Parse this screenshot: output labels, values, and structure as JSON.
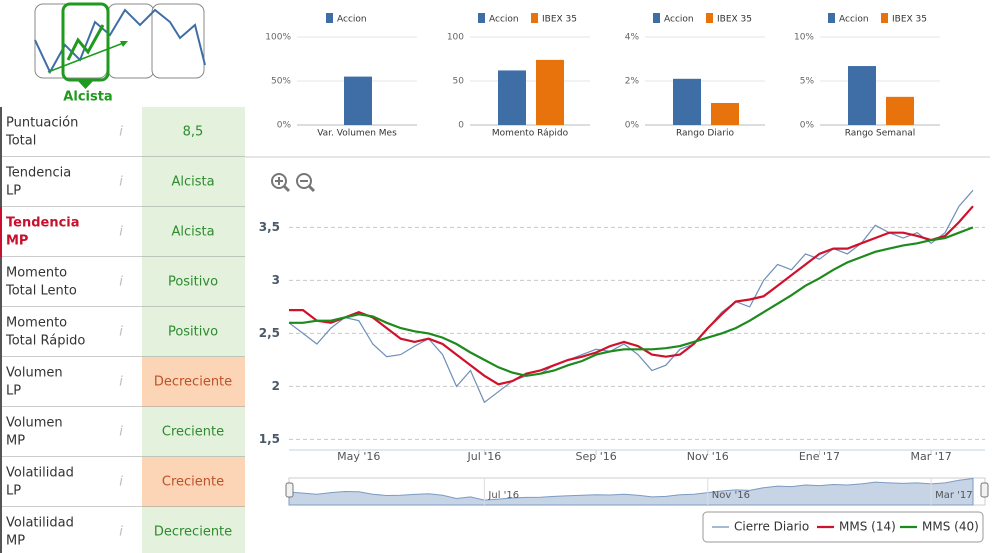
{
  "trend_badge": {
    "label": "Alcista"
  },
  "indicators": [
    {
      "label": [
        "Puntuación",
        "Total"
      ],
      "value": "8,5",
      "color": "#e3f1dd",
      "text_color": "#2e8b2e"
    },
    {
      "label": [
        "Tendencia",
        "LP"
      ],
      "value": "Alcista",
      "color": "#e3f1dd",
      "text_color": "#2e8b2e"
    },
    {
      "label": [
        "Tendencia",
        "MP"
      ],
      "value": "Alcista",
      "color": "#e3f1dd",
      "text_color": "#2e8b2e",
      "label_color": "#c8102e"
    },
    {
      "label": [
        "Momento",
        "Total Lento"
      ],
      "value": "Positivo",
      "color": "#e3f1dd",
      "text_color": "#2e8b2e"
    },
    {
      "label": [
        "Momento",
        "Total Rápido"
      ],
      "value": "Positivo",
      "color": "#e3f1dd",
      "text_color": "#2e8b2e"
    },
    {
      "label": [
        "Volumen",
        "LP"
      ],
      "value": "Decreciente",
      "color": "#fbd5b5",
      "text_color": "#c0502b"
    },
    {
      "label": [
        "Volumen",
        "MP"
      ],
      "value": "Creciente",
      "color": "#e3f1dd",
      "text_color": "#2e8b2e"
    },
    {
      "label": [
        "Volatilidad",
        "LP"
      ],
      "value": "Creciente",
      "color": "#fbd5b5",
      "text_color": "#c0502b"
    },
    {
      "label": [
        "Volatilidad",
        "MP"
      ],
      "value": "Decreciente",
      "color": "#e3f1dd",
      "text_color": "#2e8b2e"
    }
  ],
  "chart_data": [
    {
      "type": "bar",
      "categories": [
        "Var. Volumen Mes"
      ],
      "series": [
        {
          "name": "Accion",
          "color": "#3f6ea6",
          "values": [
            55
          ]
        }
      ],
      "ylim": [
        0,
        100
      ],
      "yticks": [
        {
          "value": 0,
          "label": "0%"
        },
        {
          "value": 50,
          "label": "50%"
        },
        {
          "value": 100,
          "label": "100%"
        }
      ],
      "grid": true
    },
    {
      "type": "bar",
      "categories": [
        "Momento Rápido"
      ],
      "series": [
        {
          "name": "Accion",
          "color": "#3f6ea6",
          "values": [
            62
          ]
        },
        {
          "name": "IBEX 35",
          "color": "#e8730c",
          "values": [
            74
          ]
        }
      ],
      "ylim": [
        0,
        100
      ],
      "yticks": [
        0,
        50,
        100
      ],
      "grid": true
    },
    {
      "type": "bar",
      "categories": [
        "Rango Diario"
      ],
      "series": [
        {
          "name": "Accion",
          "color": "#3f6ea6",
          "values": [
            2.1
          ]
        },
        {
          "name": "IBEX 35",
          "color": "#e8730c",
          "values": [
            1.0
          ]
        }
      ],
      "ylim": [
        0,
        4
      ],
      "yticks": [
        {
          "value": 0,
          "label": "0%"
        },
        {
          "value": 2,
          "label": "2%"
        },
        {
          "value": 4,
          "label": "4%"
        }
      ],
      "grid": true
    },
    {
      "type": "bar",
      "categories": [
        "Rango Semanal"
      ],
      "series": [
        {
          "name": "Accion",
          "color": "#3f6ea6",
          "values": [
            6.7
          ]
        },
        {
          "name": "IBEX 35",
          "color": "#e8730c",
          "values": [
            3.2
          ]
        }
      ],
      "ylim": [
        0,
        10
      ],
      "yticks": [
        {
          "value": 0,
          "label": "0%"
        },
        {
          "value": 5,
          "label": "5%"
        },
        {
          "value": 10,
          "label": "10%"
        }
      ],
      "grid": true
    },
    {
      "type": "line",
      "categories": [
        null,
        null,
        null,
        null,
        null,
        "May '16",
        null,
        null,
        null,
        null,
        null,
        null,
        null,
        null,
        "Jul '16",
        null,
        null,
        null,
        null,
        null,
        null,
        null,
        "Sep '16",
        null,
        null,
        null,
        null,
        null,
        null,
        null,
        "Nov '16",
        null,
        null,
        null,
        null,
        null,
        null,
        null,
        "Ene '17",
        null,
        null,
        null,
        null,
        null,
        null,
        null,
        "Mar '17",
        null,
        null,
        null
      ],
      "series": [
        {
          "name": "Cierre Diario",
          "color": "#6d8fb8",
          "values": [
            2.6,
            2.5,
            2.4,
            2.55,
            2.65,
            2.62,
            2.4,
            2.28,
            2.3,
            2.38,
            2.45,
            2.3,
            2.0,
            2.15,
            1.85,
            1.95,
            2.05,
            2.1,
            2.12,
            2.2,
            2.25,
            2.3,
            2.35,
            2.33,
            2.4,
            2.3,
            2.15,
            2.2,
            2.35,
            2.4,
            2.55,
            2.7,
            2.8,
            2.75,
            3.0,
            3.15,
            3.1,
            3.25,
            3.2,
            3.3,
            3.25,
            3.35,
            3.52,
            3.45,
            3.4,
            3.45,
            3.35,
            3.45,
            3.7,
            3.85
          ]
        },
        {
          "name": "MMS (14)",
          "color": "#d0112b",
          "values": [
            2.72,
            2.72,
            2.62,
            2.6,
            2.65,
            2.7,
            2.65,
            2.55,
            2.45,
            2.42,
            2.45,
            2.4,
            2.3,
            2.2,
            2.1,
            2.02,
            2.05,
            2.12,
            2.15,
            2.2,
            2.25,
            2.28,
            2.32,
            2.38,
            2.42,
            2.38,
            2.3,
            2.28,
            2.3,
            2.4,
            2.55,
            2.68,
            2.8,
            2.82,
            2.85,
            2.95,
            3.05,
            3.15,
            3.25,
            3.3,
            3.3,
            3.35,
            3.4,
            3.45,
            3.45,
            3.42,
            3.38,
            3.42,
            3.55,
            3.7
          ]
        },
        {
          "name": "MMS (40)",
          "color": "#1e8a1e",
          "values": [
            2.6,
            2.6,
            2.62,
            2.62,
            2.65,
            2.68,
            2.66,
            2.6,
            2.55,
            2.52,
            2.5,
            2.46,
            2.4,
            2.32,
            2.25,
            2.18,
            2.13,
            2.1,
            2.12,
            2.15,
            2.2,
            2.24,
            2.3,
            2.33,
            2.35,
            2.35,
            2.35,
            2.36,
            2.38,
            2.42,
            2.46,
            2.5,
            2.55,
            2.62,
            2.7,
            2.78,
            2.86,
            2.95,
            3.02,
            3.1,
            3.17,
            3.22,
            3.27,
            3.3,
            3.33,
            3.35,
            3.38,
            3.4,
            3.45,
            3.5
          ]
        }
      ],
      "ylim": [
        1.4,
        3.9
      ],
      "yticks": [
        {
          "value": 1.5,
          "label": "1,5"
        },
        2,
        {
          "value": 2.5,
          "label": "2,5"
        },
        3,
        {
          "value": 3.5,
          "label": "3,5"
        }
      ],
      "grid": true
    }
  ]
}
